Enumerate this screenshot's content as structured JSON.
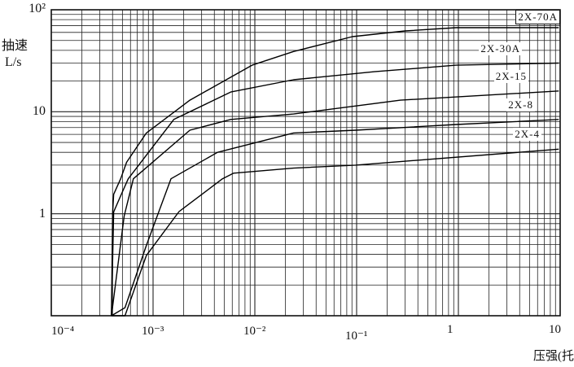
{
  "chart_data": {
    "type": "line",
    "title": "",
    "xlabel": "压强(托)",
    "ylabel": [
      "抽速",
      "L/s"
    ],
    "x_scale": "log",
    "y_scale": "log",
    "xlim": [
      0.0001,
      10
    ],
    "ylim": [
      0.1,
      100
    ],
    "grid": true,
    "x_tick_labels": [
      {
        "value": 0.0001,
        "label": "10⁻⁴"
      },
      {
        "value": 0.001,
        "label": "10⁻³"
      },
      {
        "value": 0.01,
        "label": "10⁻²"
      },
      {
        "value": 0.1,
        "label": "10⁻¹"
      },
      {
        "value": 1,
        "label": "1"
      },
      {
        "value": 10,
        "label": "10"
      }
    ],
    "y_tick_labels": [
      {
        "value": 100,
        "label": "10²"
      },
      {
        "value": 10,
        "label": "10"
      },
      {
        "value": 1,
        "label": "1"
      }
    ],
    "series": [
      {
        "name": "2X-70A",
        "points": [
          [
            0.00039,
            0.1
          ],
          [
            0.0004,
            1.0
          ],
          [
            0.00041,
            1.55
          ],
          [
            0.00048,
            2.2
          ],
          [
            0.00055,
            3.2
          ],
          [
            0.00086,
            6.2
          ],
          [
            0.0023,
            13
          ],
          [
            0.0094,
            28.6
          ],
          [
            0.024,
            39
          ],
          [
            0.091,
            54.5
          ],
          [
            0.3,
            62
          ],
          [
            0.95,
            66.7
          ],
          [
            9.7,
            66.7
          ]
        ]
      },
      {
        "name": "2X-30A",
        "points": [
          [
            0.00039,
            0.1
          ],
          [
            0.00041,
            1.04
          ],
          [
            0.00048,
            1.5
          ],
          [
            0.00057,
            2.2
          ],
          [
            0.0016,
            8.4
          ],
          [
            0.0058,
            15.6
          ],
          [
            0.024,
            20.6
          ],
          [
            0.15,
            24.7
          ],
          [
            0.95,
            28.6
          ],
          [
            9.7,
            30
          ]
        ]
      },
      {
        "name": "2X-15",
        "points": [
          [
            0.00039,
            0.1
          ],
          [
            0.00052,
            0.95
          ],
          [
            0.00064,
            2.2
          ],
          [
            0.0023,
            6.6
          ],
          [
            0.0058,
            8.4
          ],
          [
            0.024,
            9.5
          ],
          [
            0.27,
            13
          ],
          [
            9.7,
            16
          ]
        ]
      },
      {
        "name": "2X-8",
        "points": [
          [
            0.00039,
            0.1
          ],
          [
            0.00053,
            0.12
          ],
          [
            0.00086,
            0.49
          ],
          [
            0.0015,
            2.2
          ],
          [
            0.0043,
            4.0
          ],
          [
            0.024,
            6.2
          ],
          [
            0.098,
            6.6
          ],
          [
            0.95,
            7.5
          ],
          [
            9.7,
            8.4
          ]
        ]
      },
      {
        "name": "2X-4",
        "points": [
          [
            0.00039,
            0.1
          ],
          [
            0.00053,
            0.1
          ],
          [
            0.00086,
            0.39
          ],
          [
            0.0018,
            1.05
          ],
          [
            0.0048,
            2.2
          ],
          [
            0.0062,
            2.5
          ],
          [
            0.024,
            2.8
          ],
          [
            0.098,
            3.0
          ],
          [
            9.7,
            4.3
          ]
        ]
      }
    ]
  }
}
